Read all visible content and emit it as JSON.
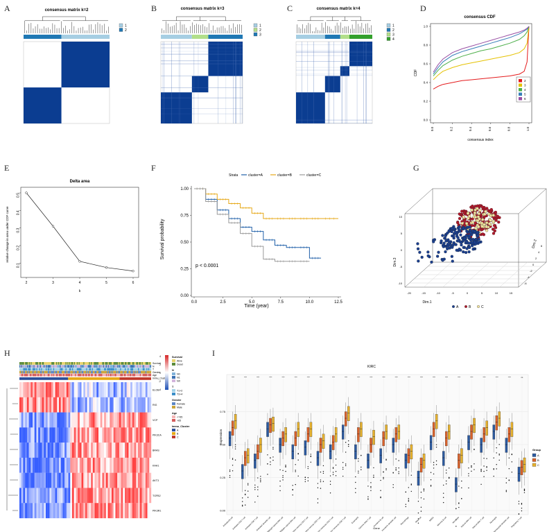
{
  "panel_letters": [
    "A",
    "B",
    "C",
    "D",
    "E",
    "F",
    "G",
    "H",
    "I"
  ],
  "chart_data": [
    {
      "panel": "A",
      "type": "heatmap",
      "title": "consensus matrix k=2",
      "legend": [
        "1",
        "2"
      ],
      "cluster_colors": [
        "#a6cee3",
        "#1f78b4"
      ],
      "blocks": [
        {
          "cluster": 2,
          "fraction": 0.44
        },
        {
          "cluster": 1,
          "fraction": 0.56
        }
      ]
    },
    {
      "panel": "B",
      "type": "heatmap",
      "title": "consensus matrix k=3",
      "legend": [
        "1",
        "2",
        "3"
      ],
      "cluster_colors": [
        "#a6cee3",
        "#b2df8a",
        "#1f78b4"
      ],
      "blocks": [
        {
          "cluster": 1,
          "fraction": 0.38
        },
        {
          "cluster": 2,
          "fraction": 0.2
        },
        {
          "cluster": 3,
          "fraction": 0.42
        }
      ]
    },
    {
      "panel": "C",
      "type": "heatmap",
      "title": "consensus matrix k=4",
      "legend": [
        "1",
        "2",
        "3",
        "4"
      ],
      "cluster_colors": [
        "#a6cee3",
        "#1f78b4",
        "#b2df8a",
        "#33a02c"
      ],
      "blocks": [
        {
          "cluster": 1,
          "fraction": 0.38
        },
        {
          "cluster": 2,
          "fraction": 0.2
        },
        {
          "cluster": 3,
          "fraction": 0.12
        },
        {
          "cluster": 4,
          "fraction": 0.3
        }
      ]
    },
    {
      "panel": "D",
      "type": "line",
      "title": "consensus CDF",
      "xlabel": "consensus index",
      "ylabel": "CDF",
      "xlim": [
        0,
        1
      ],
      "ylim": [
        0,
        1
      ],
      "x": [
        0.0,
        0.05,
        0.1,
        0.2,
        0.3,
        0.4,
        0.5,
        0.6,
        0.7,
        0.8,
        0.9,
        0.95,
        0.98,
        1.0
      ],
      "series": [
        {
          "name": "2",
          "color": "#e41a1c",
          "values": [
            0.33,
            0.36,
            0.38,
            0.4,
            0.42,
            0.43,
            0.44,
            0.45,
            0.46,
            0.47,
            0.49,
            0.52,
            0.62,
            1.0
          ]
        },
        {
          "name": "3",
          "color": "#e5c100",
          "values": [
            0.43,
            0.48,
            0.52,
            0.56,
            0.59,
            0.61,
            0.63,
            0.65,
            0.67,
            0.69,
            0.72,
            0.76,
            0.82,
            1.0
          ]
        },
        {
          "name": "4",
          "color": "#4daf4a",
          "values": [
            0.47,
            0.53,
            0.58,
            0.64,
            0.68,
            0.71,
            0.74,
            0.76,
            0.79,
            0.82,
            0.86,
            0.9,
            0.94,
            1.0
          ]
        },
        {
          "name": "5",
          "color": "#377eb8",
          "values": [
            0.49,
            0.56,
            0.62,
            0.69,
            0.73,
            0.76,
            0.79,
            0.82,
            0.85,
            0.88,
            0.92,
            0.95,
            0.97,
            1.0
          ]
        },
        {
          "name": "6",
          "color": "#984ea3",
          "values": [
            0.51,
            0.59,
            0.65,
            0.72,
            0.76,
            0.79,
            0.82,
            0.85,
            0.88,
            0.91,
            0.94,
            0.96,
            0.98,
            1.0
          ]
        }
      ],
      "xticks": [
        "0.0",
        "0.2",
        "0.4",
        "0.6",
        "0.8",
        "1.0"
      ],
      "yticks": [
        "0.0",
        "0.2",
        "0.4",
        "0.6",
        "0.8",
        "1.0"
      ]
    },
    {
      "panel": "E",
      "type": "line",
      "title": "Delta area",
      "xlabel": "k",
      "ylabel": "relative change in area under CDF curve",
      "x": [
        2,
        3,
        4,
        5,
        6
      ],
      "values": [
        0.5,
        0.31,
        0.11,
        0.075,
        0.055
      ],
      "xlim": [
        2,
        6
      ],
      "ylim": [
        0.05,
        0.5
      ],
      "xticks": [
        "2",
        "3",
        "4",
        "5",
        "6"
      ],
      "yticks": [
        "0.1",
        "0.2",
        "0.3",
        "0.4",
        "0.5"
      ]
    },
    {
      "panel": "F",
      "type": "line",
      "title": "",
      "xlabel": "Time (year)",
      "ylabel": "Survival probability",
      "legend_title": "Strata",
      "xlim": [
        0,
        12.5
      ],
      "ylim": [
        0,
        1
      ],
      "xticks": [
        "0.0",
        "2.5",
        "5.0",
        "7.5",
        "10.0",
        "12.5"
      ],
      "yticks": [
        "0.00",
        "0.25",
        "0.50",
        "0.75",
        "1.00"
      ],
      "pvalue": "p < 0.0001",
      "series": [
        {
          "name": "cluster=A",
          "color": "#1f5fa8",
          "x": [
            0,
            1,
            2,
            3,
            4,
            5,
            6,
            7,
            8,
            9,
            10,
            11
          ],
          "values": [
            1.0,
            0.9,
            0.8,
            0.72,
            0.64,
            0.6,
            0.52,
            0.47,
            0.45,
            0.45,
            0.35,
            0.35
          ]
        },
        {
          "name": "cluster=B",
          "color": "#e6a817",
          "x": [
            0,
            1,
            2,
            3,
            4,
            5,
            6,
            7,
            8,
            9,
            10,
            11,
            12.5
          ],
          "values": [
            1.0,
            0.95,
            0.9,
            0.86,
            0.82,
            0.77,
            0.72,
            0.72,
            0.72,
            0.72,
            0.72,
            0.72,
            0.72
          ]
        },
        {
          "name": "cluster=C",
          "color": "#9a9a9a",
          "x": [
            0,
            1,
            2,
            3,
            4,
            5,
            6,
            7,
            8,
            9,
            10
          ],
          "values": [
            1.0,
            0.88,
            0.76,
            0.68,
            0.58,
            0.46,
            0.34,
            0.32,
            0.32,
            0.32,
            0.32
          ]
        }
      ]
    },
    {
      "panel": "G",
      "type": "scatter",
      "title": "",
      "xlabel": "Dim.1",
      "ylabel": "Dim.3",
      "zlabel": "Dim.2",
      "legend": [
        {
          "name": "A",
          "color": "#1a3f8f"
        },
        {
          "name": "B",
          "color": "#b0182a"
        },
        {
          "name": "C",
          "color": "#f2e3a0"
        }
      ],
      "xticks": [
        "-20",
        "-15",
        "-10",
        "-5",
        "0",
        "5",
        "10",
        "15"
      ],
      "yticks": [
        "-10",
        "-5",
        "0",
        "5",
        "10"
      ],
      "zticks": [
        "-6",
        "-4",
        "-2",
        "0",
        "2",
        "4",
        "6"
      ]
    },
    {
      "panel": "H",
      "type": "heatmap",
      "annotation_rows": [
        "Survival",
        "N",
        "T",
        "Gender",
        "Age",
        "Immu_Cluster"
      ],
      "genes": [
        "ELOB",
        "RIG",
        "VCP",
        "PIK3CA",
        "BRAS",
        "KAH1",
        "AKT3",
        "TGFB2",
        "PIK3R1"
      ],
      "legend_groups": [
        {
          "title": "Survival",
          "items": [
            {
              "label": "Alive",
              "color": "#e8d36a"
            },
            {
              "label": "Dead",
              "color": "#5a8a3a"
            }
          ]
        },
        {
          "title": "N",
          "items": [
            {
              "label": "N0",
              "color": "#7fb1d9"
            },
            {
              "label": "N1",
              "color": "#3b6fb0"
            },
            {
              "label": "NX",
              "color": "#d3b4dc"
            }
          ]
        },
        {
          "title": "T",
          "items": [
            {
              "label": "T1+2",
              "color": "#a1d2e8"
            },
            {
              "label": "T3+4",
              "color": "#3b8fc9"
            }
          ]
        },
        {
          "title": "Gender",
          "items": [
            {
              "label": "Female",
              "color": "#5b86c4"
            },
            {
              "label": "Male",
              "color": "#c9a33a"
            }
          ]
        },
        {
          "title": "Age",
          "items": [
            {
              "label": "<=65",
              "color": "#f4b6b6"
            },
            {
              "label": ">65",
              "color": "#d45b5b"
            }
          ]
        },
        {
          "title": "Immu_Cluster",
          "items": [
            {
              "label": "A",
              "color": "#2c4f9a"
            },
            {
              "label": "B",
              "color": "#e6a817"
            },
            {
              "label": "C",
              "color": "#c0392b"
            }
          ]
        }
      ],
      "scale_ticks": [
        "4",
        "2",
        "0",
        "-2",
        "-4"
      ]
    },
    {
      "panel": "I",
      "type": "bar",
      "title": "KIRC",
      "xlabel": "Gene",
      "ylabel": "Expression",
      "legend_title": "Group",
      "legend": [
        {
          "name": "A",
          "color": "#2c5aa0"
        },
        {
          "name": "B",
          "color": "#d9622b"
        },
        {
          "name": "C",
          "color": "#e6b12e"
        }
      ],
      "yticks": [
        "0.75",
        "0.50",
        "0.25",
        "0.00"
      ],
      "ylim": [
        0,
        1
      ],
      "significance": [
        "****",
        "****",
        "****",
        "****",
        "****",
        "****",
        "****",
        "****",
        "****",
        "****",
        "****",
        "****",
        "****",
        "****",
        "****",
        "****",
        "****",
        "****",
        "****",
        "****",
        "****",
        "****",
        "****",
        "ns"
      ],
      "categories": [
        "Activated B cell",
        "Activated CD4 T cell",
        "Activated CD8 T cell",
        "Activated dendritic cell",
        "CD56bright natural killer cell",
        "CD56dim natural killer cell",
        "Central memory CD4 T cell",
        "Central memory CD8 T cell",
        "Effector memeory CD4 T cell",
        "Effector memeory CD8 T cell",
        "Eosinophil",
        "Gamma delta T cell",
        "Immature B cell",
        "Immature dendritic cell",
        "Macrophage",
        "Mast cell",
        "MDSC",
        "Memory B cell",
        "Monocyte",
        "Natural killer cell",
        "Natural killer T cell",
        "Neutrophil",
        "Plasmacytoid dendritic cell",
        "Regulatory T cell"
      ],
      "series": [
        {
          "name": "A",
          "values": [
            0.55,
            0.3,
            0.38,
            0.62,
            0.5,
            0.45,
            0.48,
            0.4,
            0.45,
            0.6,
            0.45,
            0.38,
            0.42,
            0.5,
            0.38,
            0.25,
            0.52,
            0.4,
            0.2,
            0.52,
            0.5,
            0.6,
            0.5,
            0.28
          ]
        },
        {
          "name": "B",
          "values": [
            0.63,
            0.4,
            0.45,
            0.65,
            0.55,
            0.55,
            0.58,
            0.5,
            0.52,
            0.7,
            0.58,
            0.5,
            0.55,
            0.58,
            0.42,
            0.35,
            0.62,
            0.55,
            0.38,
            0.6,
            0.58,
            0.67,
            0.58,
            0.33
          ]
        },
        {
          "name": "C",
          "values": [
            0.68,
            0.42,
            0.5,
            0.66,
            0.58,
            0.62,
            0.62,
            0.53,
            0.58,
            0.74,
            0.62,
            0.56,
            0.6,
            0.6,
            0.45,
            0.38,
            0.68,
            0.6,
            0.42,
            0.65,
            0.63,
            0.7,
            0.62,
            0.35
          ]
        }
      ]
    }
  ]
}
